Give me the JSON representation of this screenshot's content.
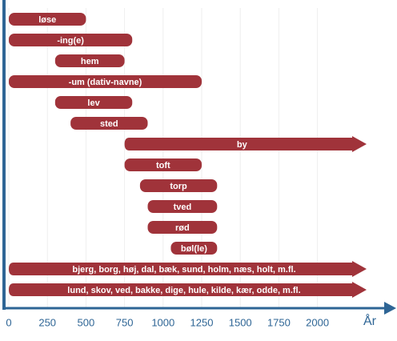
{
  "chart_data": {
    "type": "timeline",
    "x_label": "År",
    "color": "#a0333a",
    "axis_color": "#2e6595",
    "grid": true,
    "xlim": [
      0,
      2500
    ],
    "xticks": [
      0,
      250,
      500,
      750,
      1000,
      1250,
      1500,
      1750,
      2000
    ],
    "items": [
      {
        "label": "løse",
        "start": 0,
        "end": 500
      },
      {
        "label": "-ing(e)",
        "start": 0,
        "end": 800
      },
      {
        "label": "hem",
        "start": 300,
        "end": 750
      },
      {
        "label": "-um (dativ-navne)",
        "start": 0,
        "end": 1250
      },
      {
        "label": "lev",
        "start": 300,
        "end": 800
      },
      {
        "label": "sted",
        "start": 400,
        "end": 900
      },
      {
        "label": "by",
        "start": 750,
        "end": null
      },
      {
        "label": "toft",
        "start": 750,
        "end": 1250
      },
      {
        "label": "torp",
        "start": 850,
        "end": 1350
      },
      {
        "label": "tved",
        "start": 900,
        "end": 1350
      },
      {
        "label": "rød",
        "start": 900,
        "end": 1350
      },
      {
        "label": "bøl(le)",
        "start": 1050,
        "end": 1350
      },
      {
        "label": "bjerg, borg, høj, dal, bæk, sund, holm, næs, holt, m.fl.",
        "start": 0,
        "end": null
      },
      {
        "label": "lund, skov, ved, bakke, dige, hule, kilde, kær, odde, m.fl.",
        "start": 0,
        "end": null
      }
    ]
  }
}
